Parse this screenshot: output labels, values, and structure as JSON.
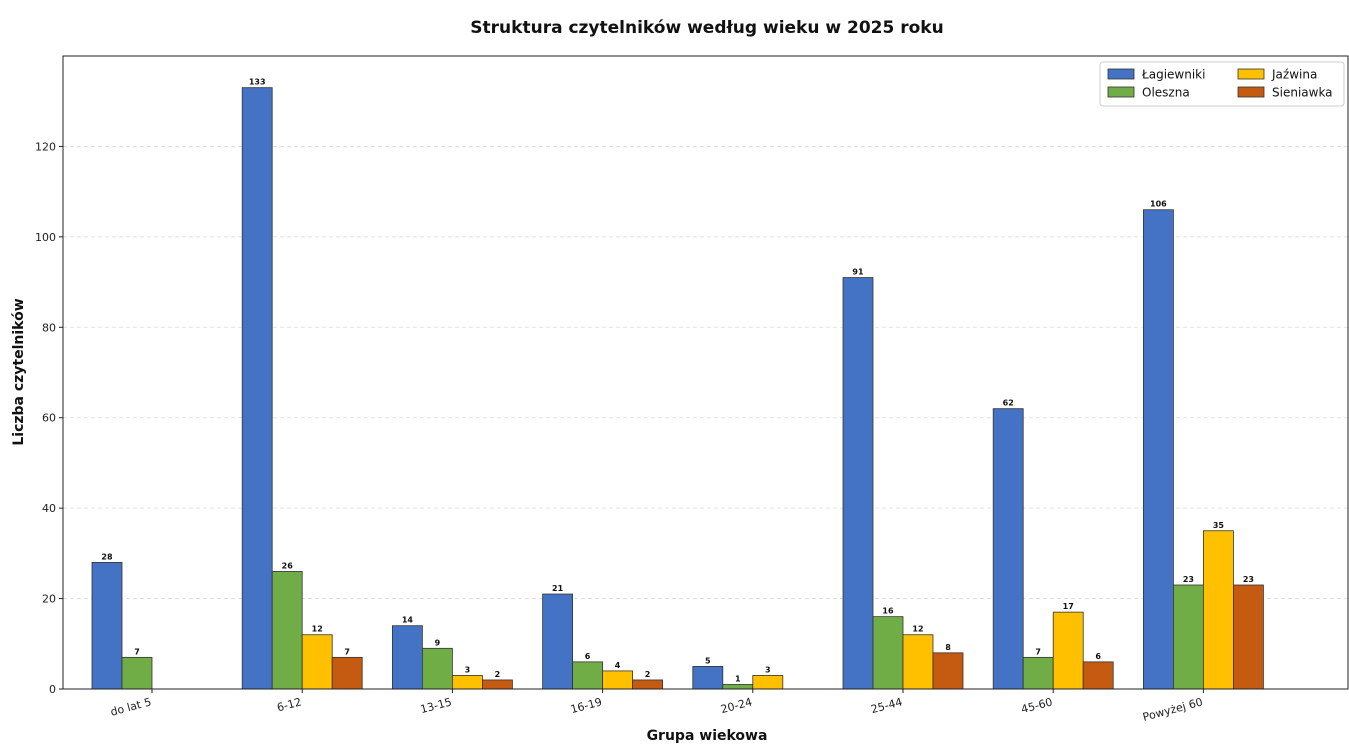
{
  "chart_data": {
    "type": "bar",
    "title": "Struktura czytelników według wieku w 2025 roku",
    "xlabel": "Grupa wiekowa",
    "ylabel": "Liczba czytelników",
    "categories": [
      "do lat 5",
      "6-12",
      "13-15",
      "16-19",
      "20-24",
      "25-44",
      "45-60",
      "Powyżej 60"
    ],
    "ylim": [
      0,
      140
    ],
    "yticks": [
      0,
      20,
      40,
      60,
      80,
      100,
      120
    ],
    "grid": "horizontal-dashed",
    "legend_position": "top-right",
    "series": [
      {
        "name": "Łagiewniki",
        "color": "#4472C4",
        "values": [
          28,
          133,
          14,
          21,
          5,
          91,
          62,
          106
        ]
      },
      {
        "name": "Oleszna",
        "color": "#70AD47",
        "values": [
          7,
          26,
          9,
          6,
          1,
          16,
          7,
          23
        ]
      },
      {
        "name": "Jaźwina",
        "color": "#FFC000",
        "values": [
          null,
          12,
          3,
          4,
          3,
          12,
          17,
          35
        ]
      },
      {
        "name": "Sieniawka",
        "color": "#C55A11",
        "values": [
          null,
          7,
          2,
          2,
          null,
          8,
          6,
          23
        ]
      }
    ]
  }
}
